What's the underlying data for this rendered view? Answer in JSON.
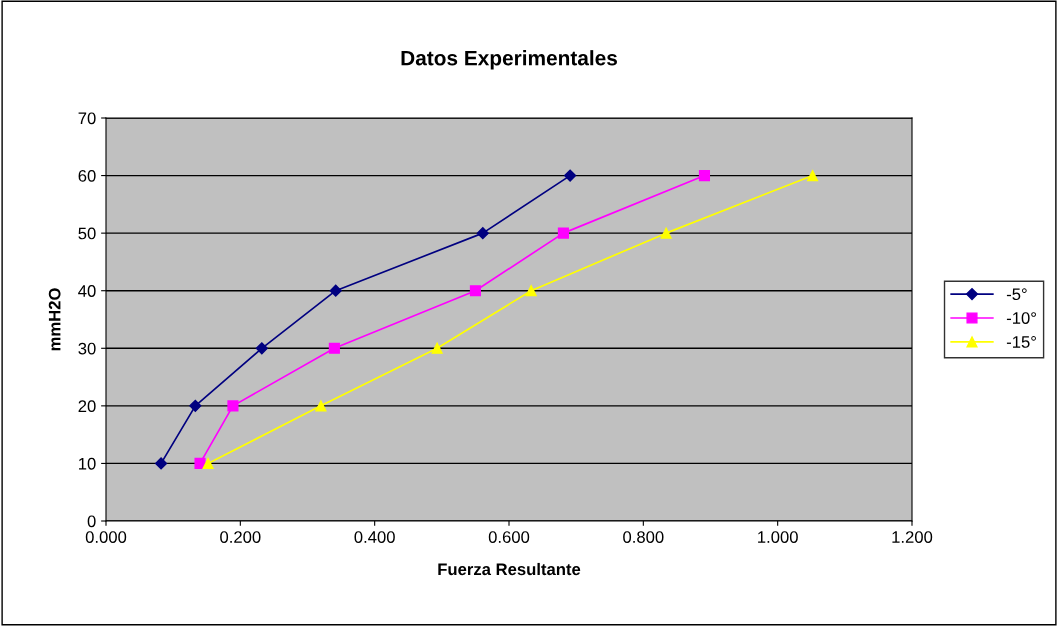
{
  "chart_data": {
    "type": "line",
    "title": "Datos Experimentales",
    "xlabel": "Fuerza Resultante",
    "ylabel": "mmH2O",
    "xlim": [
      0,
      1.2
    ],
    "xticks": [
      {
        "value": 0,
        "label": "0.000"
      },
      {
        "value": 0.2,
        "label": "0.200"
      },
      {
        "value": 0.4,
        "label": "0.400"
      },
      {
        "value": 0.6,
        "label": "0.600"
      },
      {
        "value": 0.8,
        "label": "0.800"
      },
      {
        "value": 1.0,
        "label": "1.000"
      },
      {
        "value": 1.2,
        "label": "1.200"
      }
    ],
    "ylim": [
      0,
      70
    ],
    "yticks": [
      0,
      10,
      20,
      30,
      40,
      50,
      60,
      70
    ],
    "grid": "y",
    "legend": "right",
    "series": [
      {
        "name": "-5°",
        "color": "#000080",
        "marker": "diamond",
        "x": [
          0.082,
          0.133,
          0.232,
          0.342,
          0.561,
          0.691
        ],
        "values": [
          10,
          20,
          30,
          40,
          50,
          60
        ]
      },
      {
        "name": "-10°",
        "color": "#ff00ff",
        "marker": "square",
        "x": [
          0.14,
          0.189,
          0.34,
          0.55,
          0.681,
          0.891
        ],
        "values": [
          10,
          20,
          30,
          40,
          50,
          60
        ]
      },
      {
        "name": "-15°",
        "color": "#ffff00",
        "marker": "triangle",
        "x": [
          0.152,
          0.32,
          0.493,
          0.633,
          0.834,
          1.052
        ],
        "values": [
          10,
          20,
          30,
          40,
          50,
          60
        ]
      }
    ]
  }
}
